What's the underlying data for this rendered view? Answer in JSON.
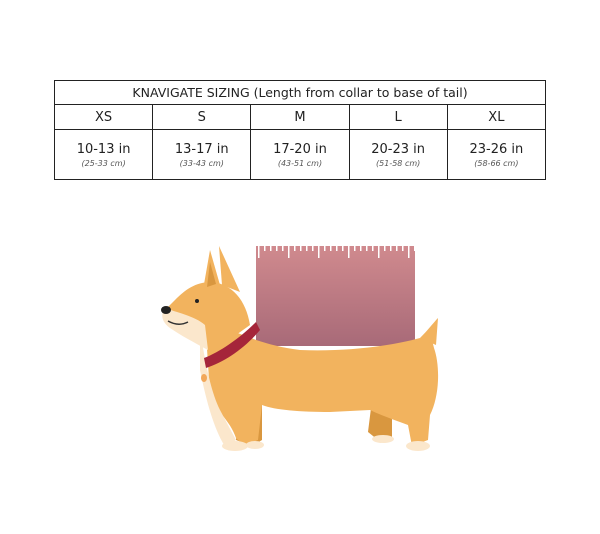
{
  "table": {
    "title": "KNAVIGATE SIZING (Length from collar to base of tail)",
    "sizes": [
      {
        "label": "XS",
        "inches": "10-13 in",
        "cm": "(25-33 cm)"
      },
      {
        "label": "S",
        "inches": "13-17 in",
        "cm": "(33-43 cm)"
      },
      {
        "label": "M",
        "inches": "17-20 in",
        "cm": "(43-51 cm)"
      },
      {
        "label": "L",
        "inches": "20-23 in",
        "cm": "(51-58 cm)"
      },
      {
        "label": "XL",
        "inches": "23-26 in",
        "cm": "(58-66 cm)"
      }
    ]
  },
  "illustration": {
    "subject": "corgi-with-measuring-ruler",
    "colors": {
      "fur": "#f2b35e",
      "cream": "#fbe7cc",
      "collar": "#a5253a",
      "ruler_top": "#d08a8e",
      "ruler_bottom": "#a86a78"
    }
  }
}
